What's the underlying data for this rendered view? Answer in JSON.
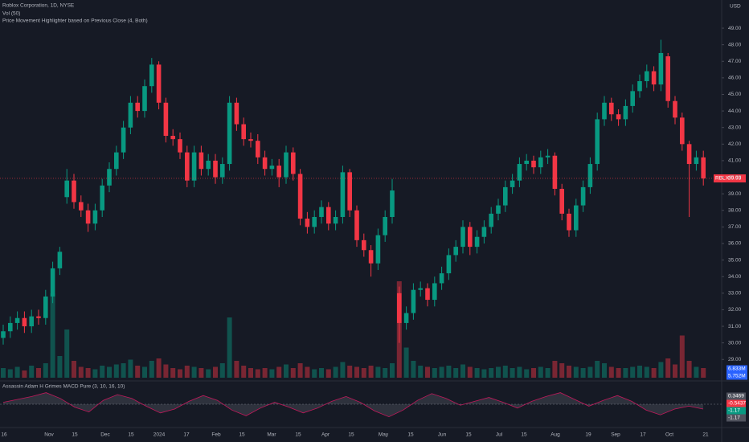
{
  "header": {
    "title": "Roblox Corporation, 1D, NYSE",
    "volume_indicator": "Vol (50)",
    "highlighter": "Price Movement Highlighter based on Previous Close (4, Both)",
    "currency": "USD"
  },
  "chart_data": {
    "type": "candlestick",
    "open": [
      30.3,
      30.7,
      31.2,
      31.5,
      31.0,
      31.6,
      31.5,
      32.8,
      34.5,
      38.8,
      39.8,
      38.5,
      38.0,
      37.2,
      38.0,
      39.5,
      40.5,
      41.5,
      43.0,
      44.5,
      44.0,
      45.5,
      46.8,
      44.5,
      42.5,
      42.3,
      41.5,
      39.8,
      41.5,
      40.5,
      41.0,
      40.0,
      40.8,
      44.5,
      43.2,
      42.3,
      42.2,
      41.2,
      40.5,
      40.7,
      40.0,
      41.5,
      40.2,
      37.5,
      37.0,
      37.6,
      38.2,
      37.2,
      37.6,
      40.3,
      38.0,
      36.2,
      35.6,
      34.8,
      36.5,
      37.6,
      33.0,
      31.2,
      31.8,
      33.2,
      33.3,
      32.6,
      33.6,
      34.2,
      35.3,
      35.8,
      37.0,
      35.8,
      36.4,
      37.0,
      37.8,
      38.3,
      39.4,
      39.8,
      40.8,
      41.0,
      40.6,
      41.2,
      41.3,
      39.3,
      37.8,
      36.8,
      38.3,
      39.4,
      40.8,
      43.5,
      44.5,
      43.8,
      43.5,
      44.3,
      45.2,
      45.8,
      46.4,
      45.6,
      47.3,
      44.6,
      43.6,
      42.0,
      40.8,
      41.2
    ],
    "high": [
      31.1,
      31.6,
      31.9,
      31.9,
      32.0,
      32.0,
      33.2,
      34.9,
      35.8,
      40.5,
      40.2,
      38.9,
      38.4,
      38.4,
      39.9,
      40.9,
      41.9,
      43.4,
      44.9,
      44.9,
      45.9,
      47.2,
      47.0,
      44.8,
      42.9,
      42.7,
      41.9,
      41.9,
      41.9,
      41.4,
      41.4,
      41.2,
      44.9,
      44.8,
      43.6,
      42.7,
      42.6,
      41.6,
      41.1,
      41.1,
      41.9,
      41.8,
      40.5,
      37.9,
      38.0,
      38.6,
      38.5,
      38.0,
      40.7,
      40.5,
      38.3,
      36.6,
      35.9,
      36.9,
      38.0,
      39.9,
      33.4,
      32.2,
      33.6,
      33.7,
      33.6,
      34.0,
      34.6,
      35.7,
      36.2,
      37.4,
      37.3,
      36.8,
      37.4,
      38.2,
      38.7,
      39.8,
      40.2,
      41.2,
      41.4,
      41.3,
      41.6,
      41.7,
      41.5,
      39.6,
      38.1,
      38.7,
      39.8,
      41.2,
      43.9,
      44.9,
      44.8,
      44.1,
      44.7,
      45.6,
      46.2,
      46.8,
      46.7,
      48.3,
      47.5,
      44.9,
      43.9,
      42.2,
      41.6,
      41.6
    ],
    "low": [
      29.9,
      30.3,
      30.8,
      30.6,
      30.6,
      31.1,
      31.1,
      32.4,
      34.1,
      38.4,
      38.1,
      37.6,
      36.7,
      36.8,
      37.6,
      39.1,
      40.1,
      41.1,
      42.6,
      43.6,
      43.6,
      45.1,
      44.1,
      42.1,
      41.9,
      41.1,
      39.4,
      39.4,
      40.1,
      40.1,
      39.6,
      39.6,
      40.4,
      42.8,
      41.9,
      41.8,
      40.8,
      40.1,
      40.1,
      39.4,
      39.6,
      39.8,
      37.1,
      36.6,
      36.6,
      37.2,
      36.8,
      36.8,
      37.2,
      37.6,
      35.8,
      35.2,
      34.0,
      34.4,
      36.1,
      37.2,
      30.0,
      30.8,
      31.4,
      32.8,
      32.2,
      32.2,
      33.2,
      33.8,
      34.9,
      35.4,
      35.3,
      35.4,
      36.0,
      36.6,
      37.4,
      37.9,
      39.0,
      39.4,
      40.4,
      40.2,
      40.2,
      40.8,
      38.9,
      37.4,
      36.4,
      36.4,
      37.9,
      39.0,
      40.4,
      43.1,
      43.4,
      43.1,
      43.1,
      43.9,
      44.8,
      45.4,
      45.2,
      45.2,
      44.2,
      43.2,
      41.6,
      37.6,
      40.4,
      39.5
    ],
    "close": [
      30.7,
      31.2,
      31.5,
      31.0,
      31.6,
      31.5,
      32.8,
      34.5,
      35.5,
      39.8,
      38.5,
      38.0,
      37.2,
      38.0,
      39.5,
      40.5,
      41.5,
      43.0,
      44.5,
      44.0,
      45.5,
      46.8,
      44.5,
      42.5,
      42.3,
      41.5,
      39.8,
      41.5,
      40.5,
      41.0,
      40.0,
      40.8,
      44.5,
      43.2,
      42.3,
      42.2,
      41.2,
      40.5,
      40.7,
      40.0,
      41.5,
      40.2,
      37.5,
      37.0,
      37.6,
      38.2,
      37.2,
      37.6,
      40.3,
      38.0,
      36.2,
      35.6,
      34.8,
      36.5,
      37.6,
      39.2,
      31.2,
      31.8,
      33.2,
      33.3,
      32.6,
      33.6,
      34.2,
      35.3,
      35.8,
      37.0,
      35.8,
      36.4,
      37.0,
      37.8,
      38.3,
      39.4,
      39.8,
      40.8,
      41.0,
      40.6,
      41.2,
      41.3,
      39.3,
      37.8,
      36.8,
      38.3,
      39.4,
      40.8,
      43.5,
      44.5,
      43.8,
      43.5,
      44.3,
      45.2,
      45.8,
      46.4,
      45.6,
      47.5,
      44.6,
      43.6,
      42.0,
      40.8,
      41.2,
      39.93
    ],
    "volume": [
      8,
      7,
      9,
      6,
      10,
      8,
      12,
      70,
      18,
      40,
      14,
      9,
      8,
      7,
      10,
      9,
      11,
      12,
      15,
      10,
      9,
      14,
      16,
      11,
      8,
      7,
      10,
      9,
      8,
      7,
      9,
      12,
      50,
      14,
      10,
      8,
      7,
      8,
      7,
      9,
      11,
      8,
      12,
      9,
      7,
      8,
      7,
      9,
      13,
      10,
      9,
      8,
      10,
      9,
      8,
      12,
      80,
      25,
      14,
      10,
      9,
      8,
      9,
      10,
      8,
      11,
      9,
      8,
      7,
      8,
      9,
      10,
      8,
      9,
      7,
      8,
      9,
      8,
      14,
      12,
      10,
      9,
      8,
      9,
      14,
      12,
      9,
      8,
      8,
      9,
      10,
      9,
      8,
      13,
      16,
      11,
      35,
      14,
      9,
      8
    ],
    "up_color": "#089981",
    "down_color": "#f23645",
    "ylim": [
      27.8,
      50.7
    ],
    "yticks": [
      {
        "value": 29,
        "label": "29.00"
      },
      {
        "value": 30,
        "label": "30.00"
      },
      {
        "value": 31,
        "label": "31.00"
      },
      {
        "value": 32,
        "label": "32.00"
      },
      {
        "value": 33,
        "label": "33.00"
      },
      {
        "value": 34,
        "label": "34.00"
      },
      {
        "value": 35,
        "label": "35.00"
      },
      {
        "value": 36,
        "label": "36.00"
      },
      {
        "value": 37,
        "label": "37.00"
      },
      {
        "value": 38,
        "label": "38.00"
      },
      {
        "value": 39,
        "label": "39.00"
      },
      {
        "value": 40,
        "label": "40.00"
      },
      {
        "value": 41,
        "label": "41.00"
      },
      {
        "value": 42,
        "label": "42.00"
      },
      {
        "value": 43,
        "label": "43.00"
      },
      {
        "value": 44,
        "label": "44.00"
      },
      {
        "value": 45,
        "label": "45.00"
      },
      {
        "value": 46,
        "label": "46.00"
      },
      {
        "value": 47,
        "label": "47.00"
      },
      {
        "value": 48,
        "label": "48.00"
      },
      {
        "value": 49,
        "label": "49.00"
      }
    ],
    "x_labels": [
      "16",
      "Nov",
      "15",
      "Dec",
      "15",
      "2024",
      "17",
      "Feb",
      "15",
      "Mar",
      "15",
      "Apr",
      "15",
      "May",
      "15",
      "Jun",
      "15",
      "Jul",
      "15",
      "Aug",
      "19",
      "Sep",
      "17",
      "Oct",
      "21"
    ],
    "ticker": "RBLX",
    "last_price": 39.93,
    "volume_labels": [
      "6.833M",
      "5.752M"
    ],
    "macd": {
      "title": "Assassin Adam H Grimes MACD Pure (3, 10, 16, 10)",
      "values": [
        0.2,
        0.5,
        0.8,
        1.2,
        0.6,
        -0.3,
        -0.8,
        0.4,
        1.0,
        0.6,
        -0.2,
        -0.9,
        -0.5,
        0.3,
        0.9,
        0.4,
        -0.6,
        -1.2,
        -0.4,
        0.2,
        -0.3,
        -0.9,
        -0.4,
        0.3,
        0.8,
        0.2,
        -0.7,
        -1.3,
        -0.6,
        0.4,
        1.1,
        0.6,
        -0.1,
        0.3,
        0.7,
        0.2,
        -0.4,
        0.3,
        0.8,
        1.2,
        0.5,
        -0.2,
        0.4,
        0.9,
        0.3,
        -0.6,
        -1.1,
        -0.5,
        -0.2,
        -0.5
      ],
      "labels": [
        "0.3469",
        "-0.5437",
        "-1.17",
        "-1.17"
      ]
    }
  }
}
